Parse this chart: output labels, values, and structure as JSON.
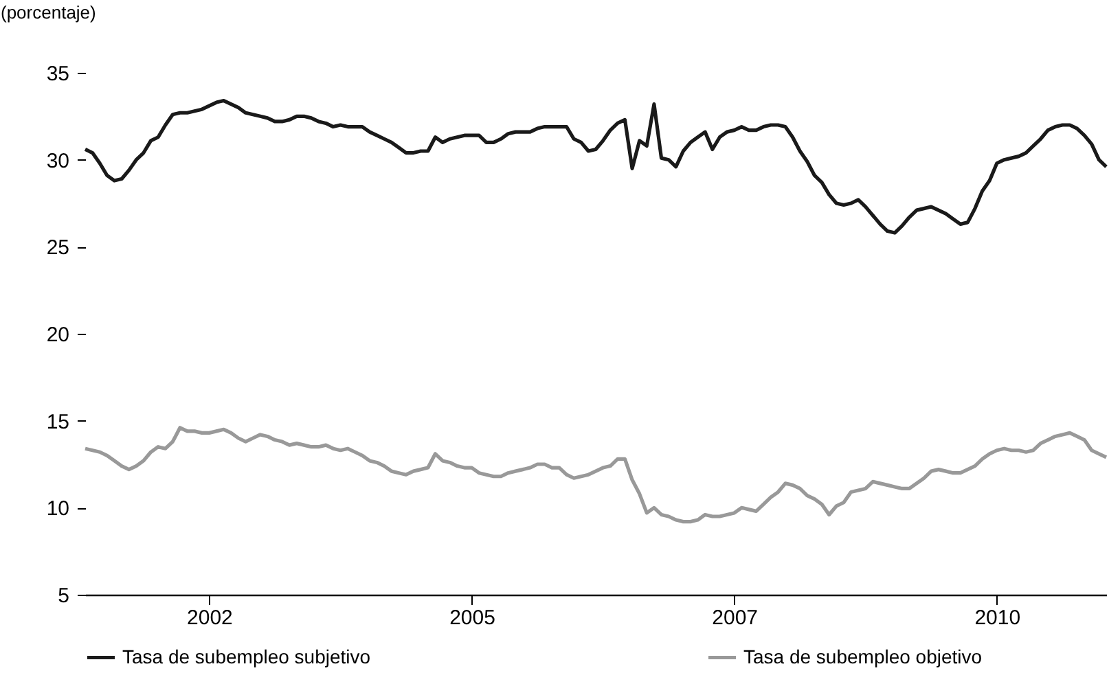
{
  "chart_data": {
    "type": "line",
    "ylabel": "(porcentaje)",
    "categories": [
      null,
      null,
      null,
      null,
      null,
      null,
      null,
      null,
      null,
      null,
      null,
      null,
      null,
      null,
      null,
      null,
      null,
      "2002",
      null,
      null,
      null,
      null,
      null,
      null,
      null,
      null,
      null,
      null,
      null,
      null,
      null,
      null,
      null,
      null,
      null,
      null,
      null,
      null,
      null,
      null,
      null,
      null,
      null,
      null,
      null,
      null,
      null,
      null,
      null,
      null,
      null,
      null,
      null,
      "2005",
      null,
      null,
      null,
      null,
      null,
      null,
      null,
      null,
      null,
      null,
      null,
      null,
      null,
      null,
      null,
      null,
      null,
      null,
      null,
      null,
      null,
      null,
      null,
      null,
      null,
      null,
      null,
      null,
      null,
      null,
      null,
      null,
      null,
      null,
      null,
      "2007",
      null,
      null,
      null,
      null,
      null,
      null,
      null,
      null,
      null,
      null,
      null,
      null,
      null,
      null,
      null,
      null,
      null,
      null,
      null,
      null,
      null,
      null,
      null,
      null,
      null,
      null,
      null,
      null,
      null,
      null,
      null,
      null,
      null,
      null,
      null,
      "2010",
      null,
      null,
      null,
      null,
      null,
      null,
      null,
      null,
      null,
      null,
      null,
      null,
      null,
      null,
      null
    ],
    "ylim": [
      5,
      35
    ],
    "yticks": [
      5,
      10,
      15,
      20,
      25,
      30,
      35
    ],
    "grid": false,
    "legend": "bottom",
    "marker": "none",
    "line_style": "solid",
    "series": [
      {
        "name": "Tasa de subempleo subjetivo",
        "color": "#1a1a1a",
        "values": [
          30.6,
          30.4,
          29.8,
          29.1,
          28.8,
          28.9,
          29.4,
          30.0,
          30.4,
          31.1,
          31.3,
          32.0,
          32.6,
          32.7,
          32.7,
          32.8,
          32.9,
          33.1,
          33.3,
          33.4,
          33.2,
          33.0,
          32.7,
          32.6,
          32.5,
          32.4,
          32.2,
          32.2,
          32.3,
          32.5,
          32.5,
          32.4,
          32.2,
          32.1,
          31.9,
          32.0,
          31.9,
          31.9,
          31.9,
          31.6,
          31.4,
          31.2,
          31.0,
          30.7,
          30.4,
          30.4,
          30.5,
          30.5,
          31.3,
          31.0,
          31.2,
          31.3,
          31.4,
          31.4,
          31.4,
          31.0,
          31.0,
          31.2,
          31.5,
          31.6,
          31.6,
          31.6,
          31.8,
          31.9,
          31.9,
          31.9,
          31.9,
          31.2,
          31.0,
          30.5,
          30.6,
          31.1,
          31.7,
          32.1,
          32.3,
          29.5,
          31.1,
          30.8,
          33.2,
          30.1,
          30.0,
          29.6,
          30.5,
          31.0,
          31.3,
          31.6,
          30.6,
          31.3,
          31.6,
          31.7,
          31.9,
          31.7,
          31.7,
          31.9,
          32.0,
          32.0,
          31.9,
          31.3,
          30.5,
          29.9,
          29.1,
          28.7,
          28.0,
          27.5,
          27.4,
          27.5,
          27.7,
          27.3,
          26.8,
          26.3,
          25.9,
          25.8,
          26.2,
          26.7,
          27.1,
          27.2,
          27.3,
          27.1,
          26.9,
          26.6,
          26.3,
          26.4,
          27.2,
          28.2,
          28.8,
          29.8,
          30.0,
          30.1,
          30.2,
          30.4,
          30.8,
          31.2,
          31.7,
          31.9,
          32.0,
          32.0,
          31.8,
          31.4,
          30.9,
          30.0,
          29.6
        ]
      },
      {
        "name": "Tasa de subempleo objetivo",
        "color": "#999999",
        "values": [
          13.4,
          13.3,
          13.2,
          13.0,
          12.7,
          12.4,
          12.2,
          12.4,
          12.7,
          13.2,
          13.5,
          13.4,
          13.8,
          14.6,
          14.4,
          14.4,
          14.3,
          14.3,
          14.4,
          14.5,
          14.3,
          14.0,
          13.8,
          14.0,
          14.2,
          14.1,
          13.9,
          13.8,
          13.6,
          13.7,
          13.6,
          13.5,
          13.5,
          13.6,
          13.4,
          13.3,
          13.4,
          13.2,
          13.0,
          12.7,
          12.6,
          12.4,
          12.1,
          12.0,
          11.9,
          12.1,
          12.2,
          12.3,
          13.1,
          12.7,
          12.6,
          12.4,
          12.3,
          12.3,
          12.0,
          11.9,
          11.8,
          11.8,
          12.0,
          12.1,
          12.2,
          12.3,
          12.5,
          12.5,
          12.3,
          12.3,
          11.9,
          11.7,
          11.8,
          11.9,
          12.1,
          12.3,
          12.4,
          12.8,
          12.8,
          11.6,
          10.8,
          9.7,
          10.0,
          9.6,
          9.5,
          9.3,
          9.2,
          9.2,
          9.3,
          9.6,
          9.5,
          9.5,
          9.6,
          9.7,
          10.0,
          9.9,
          9.8,
          10.2,
          10.6,
          10.9,
          11.4,
          11.3,
          11.1,
          10.7,
          10.5,
          10.2,
          9.6,
          10.1,
          10.3,
          10.9,
          11.0,
          11.1,
          11.5,
          11.4,
          11.3,
          11.2,
          11.1,
          11.1,
          11.4,
          11.7,
          12.1,
          12.2,
          12.1,
          12.0,
          12.0,
          12.2,
          12.4,
          12.8,
          13.1,
          13.3,
          13.4,
          13.3,
          13.3,
          13.2,
          13.3,
          13.7,
          13.9,
          14.1,
          14.2,
          14.3,
          14.1,
          13.9,
          13.3,
          13.1,
          12.9
        ]
      }
    ]
  }
}
